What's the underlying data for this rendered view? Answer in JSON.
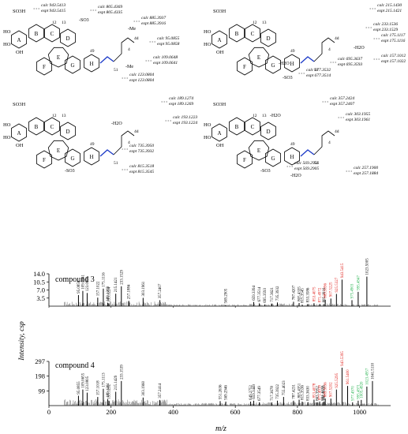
{
  "figure": {
    "structure_panels": [
      {
        "annotations": [
          {
            "calc": "calc 943.5413",
            "expt": "expt 943.5415"
          },
          {
            "calc": "calc 805.4369",
            "expt": "expt 805.4335"
          },
          {
            "calc": "calc 885.3937",
            "expt": "expt 885.3916"
          },
          {
            "calc": "calc 95.0855",
            "expt": "expt 95.0858"
          },
          {
            "calc": "calc 109.0648",
            "expt": "expt 109.0641"
          },
          {
            "calc": "calc 123.0804",
            "expt": "expt 123.0804"
          }
        ],
        "fragments": [
          "-SO3",
          "-Me",
          "-Me"
        ],
        "groups": [
          "SO3H",
          "HO",
          "HO",
          "OH"
        ],
        "ring_labels": [
          "A",
          "B",
          "C",
          "D",
          "E",
          "F",
          "G",
          "H"
        ],
        "atom_labels": [
          "12",
          "13",
          "49",
          "51",
          "4",
          "4d"
        ]
      },
      {
        "annotations": [
          {
            "calc": "calc 215.1430",
            "expt": "expt 215.1421"
          },
          {
            "calc": "calc 233.1536",
            "expt": "expt 233.1529"
          },
          {
            "calc": "calc 175.1117",
            "expt": "expt 175.1116"
          },
          {
            "calc": "calc 157.1012",
            "expt": "expt 157.1022"
          },
          {
            "calc": "calc 695.3637",
            "expt": "expt 695.3593"
          },
          {
            "calc": "calc 677.3532",
            "expt": "expt 677.3514"
          }
        ],
        "fragments": [
          "-H2O",
          "-H2O",
          "-SO3"
        ],
        "groups": [
          "SO3H",
          "HO",
          "HO",
          "OH"
        ],
        "ring_labels": [
          "A",
          "B",
          "C",
          "D",
          "E",
          "F",
          "G",
          "H"
        ],
        "atom_labels": [
          "12",
          "13",
          "49",
          "51",
          "4",
          "4d"
        ]
      },
      {
        "annotations": [
          {
            "calc": "calc 189.1274",
            "expt": "expt 189.1269"
          },
          {
            "calc": "calc 193.1223",
            "expt": "expt 193.1224"
          },
          {
            "calc": "calc 735.3950",
            "expt": "expt 735.3932"
          },
          {
            "calc": "calc 815.3518",
            "expt": "expt 815.3545"
          }
        ],
        "fragments": [
          "-H2O",
          "-SO3"
        ],
        "groups": [
          "SO3H",
          "HO",
          "HO",
          "OH"
        ],
        "ring_labels": [
          "A",
          "B",
          "C",
          "D",
          "E",
          "F",
          "G",
          "H"
        ],
        "atom_labels": [
          "12",
          "13",
          "49",
          "51",
          "4",
          "4d"
        ]
      },
      {
        "annotations": [
          {
            "calc": "calc 357.2424",
            "expt": "expt 357.2407"
          },
          {
            "calc": "calc 303.1955",
            "expt": "expt 303.1961"
          },
          {
            "calc": "calc 569.2956",
            "expt": "expt 569.2905"
          },
          {
            "calc": "calc 257.1900",
            "expt": "expt 257.1884"
          }
        ],
        "fragments": [
          "-H2O",
          "-SO3",
          "-H2O"
        ],
        "groups": [
          "SO3H",
          "HO",
          "HO",
          "OH"
        ],
        "ring_labels": [
          "A",
          "B",
          "C",
          "D",
          "E",
          "F",
          "G",
          "H"
        ],
        "atom_labels": [
          "12",
          "13",
          "49",
          "51",
          "4",
          "4d"
        ]
      }
    ],
    "colors": {
      "peak": "#000000",
      "red_label": "#e0201b",
      "green_label": "#22b14c",
      "structure": "#000000",
      "double_bond": "#1e3cc8"
    }
  },
  "chart_data": [
    {
      "type": "bar",
      "title": "",
      "panel_label": "compound 3",
      "xlabel": "m/z",
      "ylabel": "Intensity, csp",
      "xlim": [
        0,
        1100
      ],
      "ylim": [
        0,
        14.0
      ],
      "yticks": [
        "3.5",
        "7.0",
        "10.5",
        "14.0"
      ],
      "xticks": [],
      "peaks_labeled": [
        {
          "x": 95.0858,
          "y": 4.8,
          "label": "95.0858",
          "color": "black"
        },
        {
          "x": 109.0641,
          "y": 6.6,
          "label": "109.0641",
          "color": "black"
        },
        {
          "x": 123.0804,
          "y": 5.7,
          "label": "123.0804",
          "color": "black"
        },
        {
          "x": 157.1022,
          "y": 3.7,
          "label": "157.1022",
          "color": "black"
        },
        {
          "x": 175.1116,
          "y": 7.6,
          "label": "175.1116",
          "color": "black"
        },
        {
          "x": 189.1269,
          "y": 1.5,
          "label": "189.1269",
          "color": "black"
        },
        {
          "x": 193.1224,
          "y": 1.1,
          "label": "193.1224",
          "color": "black"
        },
        {
          "x": 215.1421,
          "y": 5.4,
          "label": "215.1421",
          "color": "black"
        },
        {
          "x": 233.1529,
          "y": 8.6,
          "label": "233.1529",
          "color": "black"
        },
        {
          "x": 257.1884,
          "y": 2.3,
          "label": "257.1884",
          "color": "black"
        },
        {
          "x": 303.1961,
          "y": 3.6,
          "label": "303.1961",
          "color": "black"
        },
        {
          "x": 357.2407,
          "y": 2.6,
          "label": "357.2407",
          "color": "black"
        },
        {
          "x": 569.2905,
          "y": 0.5,
          "label": "569.2905",
          "color": "black"
        },
        {
          "x": 659.3394,
          "y": 1.8,
          "label": "659.3394",
          "color": "black"
        },
        {
          "x": 677.3514,
          "y": 1.2,
          "label": "677.3514",
          "color": "black"
        },
        {
          "x": 695.3593,
          "y": 0.8,
          "label": "695.3593",
          "color": "black"
        },
        {
          "x": 717.3621,
          "y": 1.1,
          "label": "717.3621",
          "color": "black"
        },
        {
          "x": 735.3932,
          "y": 1.6,
          "label": "735.3932",
          "color": "black"
        },
        {
          "x": 787.4207,
          "y": 1.9,
          "label": "787.4207",
          "color": "black"
        },
        {
          "x": 805.4335,
          "y": 1.4,
          "label": "805.4335",
          "color": "black"
        },
        {
          "x": 815.3545,
          "y": 0.7,
          "label": "815.3545",
          "color": "black"
        },
        {
          "x": 833.3586,
          "y": 0.9,
          "label": "833.3586",
          "color": "black"
        },
        {
          "x": 853.4075,
          "y": 1.3,
          "label": "853.4075",
          "color": "red"
        },
        {
          "x": 871.4972,
          "y": 0.9,
          "label": "871.4972",
          "color": "red"
        },
        {
          "x": 885.3916,
          "y": 0.9,
          "label": "885.3916",
          "color": "black"
        },
        {
          "x": 889.5096,
          "y": 2.8,
          "label": "889.5096",
          "color": "red"
        },
        {
          "x": 907.5225,
          "y": 3.3,
          "label": "907.5225",
          "color": "red"
        },
        {
          "x": 925.5327,
          "y": 5.3,
          "label": "925.5327",
          "color": "red"
        },
        {
          "x": 943.5415,
          "y": 11.5,
          "label": "943.5415",
          "color": "red"
        },
        {
          "x": 975.4903,
          "y": 2.6,
          "label": "975.4903",
          "color": "green"
        },
        {
          "x": 995.4947,
          "y": 6.2,
          "label": "995.4947",
          "color": "green"
        },
        {
          "x": 1023.5005,
          "y": 12.8,
          "label": "1023.5005",
          "color": "black"
        }
      ]
    },
    {
      "type": "bar",
      "title": "",
      "panel_label": "compound 4",
      "xlabel": "m/z",
      "ylabel": "Intensity, csp",
      "xlim": [
        0,
        1100
      ],
      "ylim": [
        0,
        297
      ],
      "yticks": [
        "99",
        "198",
        "297"
      ],
      "xticks": [
        "0",
        "200",
        "400",
        "600",
        "800",
        "1000"
      ],
      "peaks_labeled": [
        {
          "x": 95.0855,
          "y": 66,
          "label": "95.0855",
          "color": "black"
        },
        {
          "x": 109.0655,
          "y": 108,
          "label": "109.0655",
          "color": "black"
        },
        {
          "x": 123.0805,
          "y": 87,
          "label": "123.0805",
          "color": "black"
        },
        {
          "x": 157.1018,
          "y": 58,
          "label": "157.1018",
          "color": "black"
        },
        {
          "x": 175.1113,
          "y": 113,
          "label": "175.1113",
          "color": "black"
        },
        {
          "x": 189.1261,
          "y": 43,
          "label": "189.1261",
          "color": "black"
        },
        {
          "x": 193.1232,
          "y": 33,
          "label": "193.1232",
          "color": "black"
        },
        {
          "x": 215.1429,
          "y": 93,
          "label": "215.1429",
          "color": "black"
        },
        {
          "x": 233.1539,
          "y": 165,
          "label": "233.1539",
          "color": "black"
        },
        {
          "x": 303.196,
          "y": 54,
          "label": "303.1960",
          "color": "black"
        },
        {
          "x": 357.2414,
          "y": 38,
          "label": "357.2414",
          "color": "black"
        },
        {
          "x": 551.2636,
          "y": 30,
          "label": "551.2636",
          "color": "black"
        },
        {
          "x": 569.2946,
          "y": 27,
          "label": "569.2946",
          "color": "black"
        },
        {
          "x": 649.2752,
          "y": 27,
          "label": "649.2752",
          "color": "black"
        },
        {
          "x": 659.3449,
          "y": 33,
          "label": "659.3449",
          "color": "black"
        },
        {
          "x": 677.3549,
          "y": 22,
          "label": "677.3549",
          "color": "black"
        },
        {
          "x": 717.3678,
          "y": 22,
          "label": "717.3678",
          "color": "black"
        },
        {
          "x": 735.3922,
          "y": 33,
          "label": "735.3922",
          "color": "black"
        },
        {
          "x": 755.4023,
          "y": 58,
          "label": "755.4023",
          "color": "black"
        },
        {
          "x": 787.4231,
          "y": 33,
          "label": "787.4231",
          "color": "black"
        },
        {
          "x": 805.4351,
          "y": 40,
          "label": "805.4351",
          "color": "black"
        },
        {
          "x": 815.3536,
          "y": 27,
          "label": "815.3536",
          "color": "black"
        },
        {
          "x": 833.363,
          "y": 22,
          "label": "833.3630",
          "color": "black"
        },
        {
          "x": 853.4078,
          "y": 40,
          "label": "853.4078",
          "color": "red"
        },
        {
          "x": 863.3952,
          "y": 22,
          "label": "863.3952",
          "color": "black"
        },
        {
          "x": 871.4918,
          "y": 27,
          "label": "871.4918",
          "color": "red"
        },
        {
          "x": 881.4028,
          "y": 22,
          "label": "881.4028",
          "color": "black"
        },
        {
          "x": 885.393,
          "y": 27,
          "label": "885.3930",
          "color": "black"
        },
        {
          "x": 889.5036,
          "y": 47,
          "label": "889.5036",
          "color": "red"
        },
        {
          "x": 907.5202,
          "y": 47,
          "label": "907.5202",
          "color": "red"
        },
        {
          "x": 925.5295,
          "y": 108,
          "label": "925.5295",
          "color": "red"
        },
        {
          "x": 943.5395,
          "y": 255,
          "label": "943.5395",
          "color": "red"
        },
        {
          "x": 961.54,
          "y": 132,
          "label": "961.5400",
          "color": "red"
        },
        {
          "x": 977.497,
          "y": 22,
          "label": "977.4970",
          "color": "green"
        },
        {
          "x": 995.4971,
          "y": 33,
          "label": "995.4971",
          "color": "green"
        },
        {
          "x": 1005.492,
          "y": 38,
          "label": "1005.4920",
          "color": "green"
        },
        {
          "x": 1023.4957,
          "y": 128,
          "label": "1023.4957",
          "color": "green"
        },
        {
          "x": 1041.511,
          "y": 165,
          "label": "1041.5110",
          "color": "black"
        }
      ]
    }
  ]
}
